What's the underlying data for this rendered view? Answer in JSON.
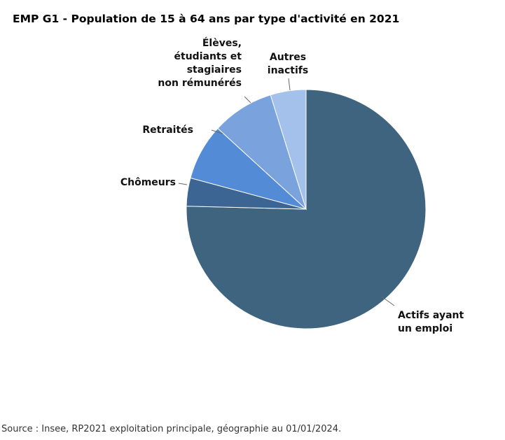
{
  "chart_data": {
    "type": "pie",
    "title": "EMP G1 - Population de 15 à 64 ans par type d'activité en 2021",
    "slices": [
      {
        "label": "Actifs ayant un emploi",
        "label_lines": [
          "Actifs ayant",
          "un emploi"
        ],
        "value": 75.4,
        "color": "#3e6480"
      },
      {
        "label": "Chômeurs",
        "label_lines": [
          "Chômeurs"
        ],
        "value": 3.8,
        "color": "#3d6593"
      },
      {
        "label": "Retraités",
        "label_lines": [
          "Retraités"
        ],
        "value": 7.6,
        "color": "#538bd6"
      },
      {
        "label": "Élèves, étudiants et stagiaires non rémunérés",
        "label_lines": [
          "Élèves,",
          "étudiants et",
          "stagiaires",
          "non rémunérés"
        ],
        "value": 8.4,
        "color": "#7aa3de"
      },
      {
        "label": "Autres inactifs",
        "label_lines": [
          "Autres",
          "inactifs"
        ],
        "value": 4.8,
        "color": "#a3c1ea"
      }
    ],
    "start_position": "top",
    "direction": "clockwise",
    "legend": "none"
  },
  "footer": {
    "source": "Source : Insee, RP2021 exploitation principale, géographie au 01/01/2024."
  }
}
